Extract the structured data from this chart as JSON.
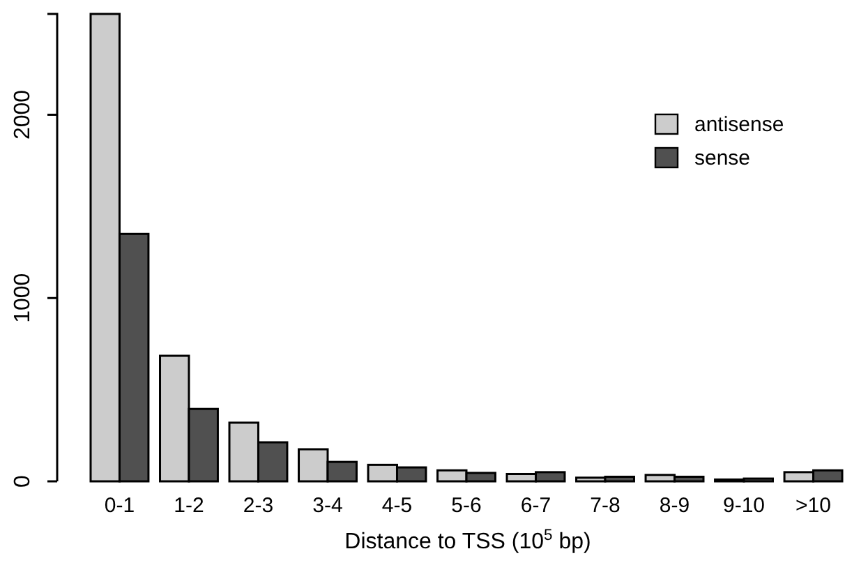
{
  "chart_data": {
    "type": "bar",
    "xlabel": "Distance to TSS (10$^{5}$ bp)",
    "categories": [
      "0-1",
      "1-2",
      "2-3",
      "3-4",
      "4-5",
      "5-6",
      "6-7",
      "7-8",
      "8-9",
      "9-10",
      ">10"
    ],
    "series": [
      {
        "name": "antisense",
        "color": "#cccccc",
        "values": [
          2550,
          685,
          320,
          175,
          90,
          60,
          40,
          20,
          35,
          10,
          50
        ]
      },
      {
        "name": "sense",
        "color": "#505050",
        "values": [
          1350,
          395,
          213,
          106,
          76,
          46,
          50,
          25,
          25,
          15,
          60
        ]
      }
    ],
    "ylim": [
      0,
      2550
    ],
    "yticks": [
      0,
      1000,
      2000
    ],
    "grid": false,
    "legend": "top right"
  }
}
